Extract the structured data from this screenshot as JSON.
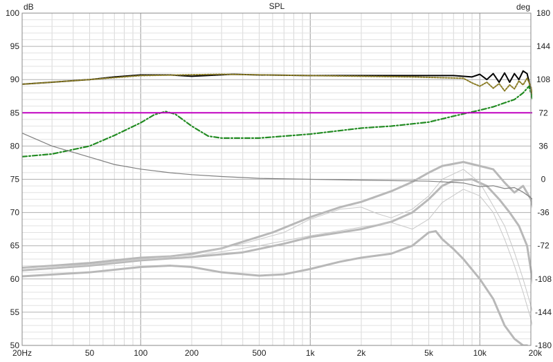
{
  "chart_data": {
    "type": "line",
    "title": "SPL",
    "ylabel_left": "dB",
    "ylabel_right": "deg",
    "x_scale": "log",
    "xlim": [
      20,
      20000
    ],
    "ylim_left": [
      50,
      100
    ],
    "ylim_right": [
      -180,
      180
    ],
    "grid": true,
    "x_ticks": [
      {
        "value": 20,
        "label": "20Hz"
      },
      {
        "value": 50,
        "label": "50"
      },
      {
        "value": 100,
        "label": "100"
      },
      {
        "value": 200,
        "label": "200"
      },
      {
        "value": 500,
        "label": "500"
      },
      {
        "value": 1000,
        "label": "1k"
      },
      {
        "value": 2000,
        "label": "2k"
      },
      {
        "value": 5000,
        "label": "5k"
      },
      {
        "value": 10000,
        "label": "10k"
      },
      {
        "value": 20000,
        "label": "20k"
      }
    ],
    "y_left_ticks": [
      "100",
      "95",
      "90",
      "85",
      "80",
      "75",
      "70",
      "65",
      "60",
      "55",
      "50"
    ],
    "y_right_ticks": [
      "180",
      "144",
      "108",
      "72",
      "36",
      "0",
      "-36",
      "-72",
      "-108",
      "-144",
      "-180"
    ],
    "series": [
      {
        "axis": "left",
        "color": "#000000",
        "style": "solid",
        "width": 2,
        "points": [
          [
            20,
            89.3
          ],
          [
            30,
            89.6
          ],
          [
            50,
            90.0
          ],
          [
            70,
            90.4
          ],
          [
            100,
            90.7
          ],
          [
            150,
            90.7
          ],
          [
            200,
            90.5
          ],
          [
            350,
            90.8
          ],
          [
            500,
            90.7
          ],
          [
            1000,
            90.6
          ],
          [
            2000,
            90.6
          ],
          [
            4000,
            90.6
          ],
          [
            7000,
            90.6
          ],
          [
            9000,
            90.4
          ],
          [
            10000,
            90.8
          ],
          [
            11000,
            90.0
          ],
          [
            12000,
            90.9
          ],
          [
            13000,
            89.6
          ],
          [
            14000,
            91.0
          ],
          [
            15000,
            89.6
          ],
          [
            16000,
            90.9
          ],
          [
            17000,
            90.0
          ],
          [
            18000,
            91.3
          ],
          [
            19000,
            90.9
          ],
          [
            20000,
            88.6
          ],
          [
            22000,
            83.0
          ],
          [
            23500,
            76.5
          ]
        ]
      },
      {
        "axis": "left",
        "color": "#8b7d28",
        "style": "dotted",
        "width": 2,
        "points": [
          [
            20,
            89.3
          ],
          [
            50,
            90.0
          ],
          [
            100,
            90.6
          ],
          [
            300,
            90.8
          ],
          [
            1000,
            90.6
          ],
          [
            4000,
            90.4
          ],
          [
            8000,
            90.2
          ],
          [
            9000,
            89.5
          ],
          [
            10000,
            89.0
          ],
          [
            11000,
            89.6
          ],
          [
            12000,
            88.7
          ],
          [
            13000,
            89.4
          ],
          [
            14000,
            88.3
          ],
          [
            15000,
            89.2
          ],
          [
            16000,
            88.6
          ],
          [
            17000,
            89.8
          ],
          [
            18000,
            89.2
          ],
          [
            19000,
            90.2
          ],
          [
            20000,
            89.0
          ],
          [
            21500,
            85.0
          ],
          [
            23500,
            78.0
          ]
        ]
      },
      {
        "axis": "left",
        "color": "#228b22",
        "style": "dashdot",
        "width": 2.2,
        "points": [
          [
            20,
            78.4
          ],
          [
            30,
            78.8
          ],
          [
            50,
            80.0
          ],
          [
            70,
            81.6
          ],
          [
            100,
            83.5
          ],
          [
            120,
            84.7
          ],
          [
            140,
            85.2
          ],
          [
            160,
            84.8
          ],
          [
            200,
            83.0
          ],
          [
            250,
            81.5
          ],
          [
            300,
            81.2
          ],
          [
            500,
            81.2
          ],
          [
            1000,
            81.8
          ],
          [
            2000,
            82.7
          ],
          [
            3000,
            83.0
          ],
          [
            5000,
            83.6
          ],
          [
            7000,
            84.5
          ],
          [
            10000,
            85.4
          ],
          [
            12000,
            85.9
          ],
          [
            14000,
            86.5
          ],
          [
            16000,
            87.0
          ],
          [
            18000,
            88.0
          ],
          [
            19500,
            89.0
          ],
          [
            21000,
            86.0
          ],
          [
            23500,
            76.5
          ]
        ]
      },
      {
        "axis": "left",
        "color": "#c000c0",
        "style": "solid",
        "width": 2,
        "points": [
          [
            20,
            85.0
          ],
          [
            23500,
            85.0
          ]
        ]
      },
      {
        "axis": "right",
        "color": "#808080",
        "style": "solid",
        "width": 1.2,
        "points": [
          [
            20,
            50
          ],
          [
            30,
            36
          ],
          [
            50,
            24
          ],
          [
            70,
            16
          ],
          [
            100,
            11
          ],
          [
            150,
            7
          ],
          [
            200,
            5
          ],
          [
            300,
            3
          ],
          [
            500,
            1
          ],
          [
            1000,
            0
          ],
          [
            2000,
            -1
          ],
          [
            5000,
            -2
          ],
          [
            8000,
            -4
          ],
          [
            10000,
            -8
          ],
          [
            12000,
            -7
          ],
          [
            14000,
            -10
          ],
          [
            16000,
            -9
          ],
          [
            18000,
            -14
          ],
          [
            20000,
            -20
          ],
          [
            22000,
            -27
          ],
          [
            23500,
            -32
          ]
        ]
      },
      {
        "axis": "left",
        "color": "#b8b8b8",
        "style": "solid",
        "width": 3,
        "group": "directivity",
        "points": [
          [
            20,
            61.7
          ],
          [
            30,
            62.0
          ],
          [
            50,
            62.4
          ],
          [
            70,
            62.8
          ],
          [
            100,
            63.2
          ],
          [
            150,
            63.4
          ],
          [
            200,
            63.8
          ],
          [
            300,
            64.6
          ],
          [
            400,
            65.6
          ],
          [
            600,
            67.0
          ],
          [
            1000,
            69.3
          ],
          [
            1500,
            70.8
          ],
          [
            2000,
            71.6
          ],
          [
            3000,
            73.2
          ],
          [
            4000,
            74.6
          ],
          [
            5000,
            76.0
          ],
          [
            6000,
            77.0
          ],
          [
            8000,
            77.6
          ],
          [
            10000,
            77.0
          ],
          [
            12000,
            76.5
          ],
          [
            14000,
            74.5
          ],
          [
            16000,
            73.0
          ],
          [
            18000,
            74.0
          ],
          [
            20000,
            72.0
          ],
          [
            22000,
            68.0
          ],
          [
            23500,
            63.0
          ]
        ]
      },
      {
        "axis": "left",
        "color": "#b8b8b8",
        "style": "solid",
        "width": 3,
        "group": "directivity",
        "points": [
          [
            20,
            61.3
          ],
          [
            50,
            62.0
          ],
          [
            100,
            62.8
          ],
          [
            200,
            63.3
          ],
          [
            400,
            64.0
          ],
          [
            700,
            65.3
          ],
          [
            1000,
            66.3
          ],
          [
            1500,
            67.0
          ],
          [
            2000,
            67.5
          ],
          [
            3000,
            68.6
          ],
          [
            4000,
            70.0
          ],
          [
            5000,
            72.0
          ],
          [
            6000,
            74.0
          ],
          [
            7000,
            74.8
          ],
          [
            9000,
            75.0
          ],
          [
            11000,
            74.0
          ],
          [
            13000,
            72.0
          ],
          [
            15000,
            70.0
          ],
          [
            17000,
            68.0
          ],
          [
            19000,
            65.0
          ],
          [
            21000,
            58.0
          ],
          [
            23500,
            50.5
          ]
        ]
      },
      {
        "axis": "left",
        "color": "#b8b8b8",
        "style": "solid",
        "width": 3,
        "group": "directivity",
        "points": [
          [
            20,
            60.4
          ],
          [
            50,
            61.0
          ],
          [
            100,
            61.8
          ],
          [
            150,
            62.0
          ],
          [
            200,
            61.8
          ],
          [
            300,
            61.0
          ],
          [
            500,
            60.5
          ],
          [
            700,
            60.7
          ],
          [
            1000,
            61.5
          ],
          [
            1500,
            62.6
          ],
          [
            2000,
            63.2
          ],
          [
            3000,
            63.8
          ],
          [
            4000,
            65.0
          ],
          [
            5000,
            67.0
          ],
          [
            5500,
            67.2
          ],
          [
            6000,
            66.0
          ],
          [
            7000,
            64.5
          ],
          [
            8000,
            63.0
          ],
          [
            10000,
            60.0
          ],
          [
            12000,
            57.0
          ],
          [
            14000,
            53.0
          ],
          [
            16000,
            51.0
          ],
          [
            18000,
            50.0
          ],
          [
            19000,
            50.0
          ]
        ]
      },
      {
        "axis": "left",
        "color": "#c8c8c8",
        "style": "solid",
        "width": 1,
        "group": "directivity",
        "points": [
          [
            20,
            61.6
          ],
          [
            50,
            62.2
          ],
          [
            100,
            63.0
          ],
          [
            200,
            63.6
          ],
          [
            400,
            65.3
          ],
          [
            700,
            67.0
          ],
          [
            1000,
            69.0
          ],
          [
            1500,
            70.5
          ],
          [
            2000,
            70.8
          ],
          [
            2500,
            69.8
          ],
          [
            3000,
            69.2
          ],
          [
            4000,
            70.5
          ],
          [
            5000,
            72.5
          ],
          [
            6000,
            75.0
          ],
          [
            8000,
            76.5
          ],
          [
            10000,
            74.5
          ],
          [
            12000,
            71.0
          ],
          [
            14000,
            68.0
          ],
          [
            16000,
            64.0
          ],
          [
            18000,
            60.0
          ],
          [
            20000,
            56.0
          ],
          [
            22000,
            52.0
          ]
        ]
      },
      {
        "axis": "left",
        "color": "#c8c8c8",
        "style": "solid",
        "width": 1,
        "group": "directivity",
        "points": [
          [
            20,
            61.4
          ],
          [
            50,
            62.1
          ],
          [
            100,
            62.9
          ],
          [
            200,
            63.4
          ],
          [
            500,
            65.0
          ],
          [
            1000,
            66.5
          ],
          [
            2000,
            67.8
          ],
          [
            3000,
            68.5
          ],
          [
            4000,
            67.5
          ],
          [
            5000,
            69.0
          ],
          [
            6000,
            71.5
          ],
          [
            8000,
            73.5
          ],
          [
            10000,
            72.5
          ],
          [
            12000,
            70.0
          ],
          [
            14000,
            66.0
          ],
          [
            16000,
            62.0
          ],
          [
            18000,
            58.0
          ],
          [
            20000,
            54.0
          ],
          [
            21500,
            50.5
          ]
        ]
      }
    ]
  }
}
